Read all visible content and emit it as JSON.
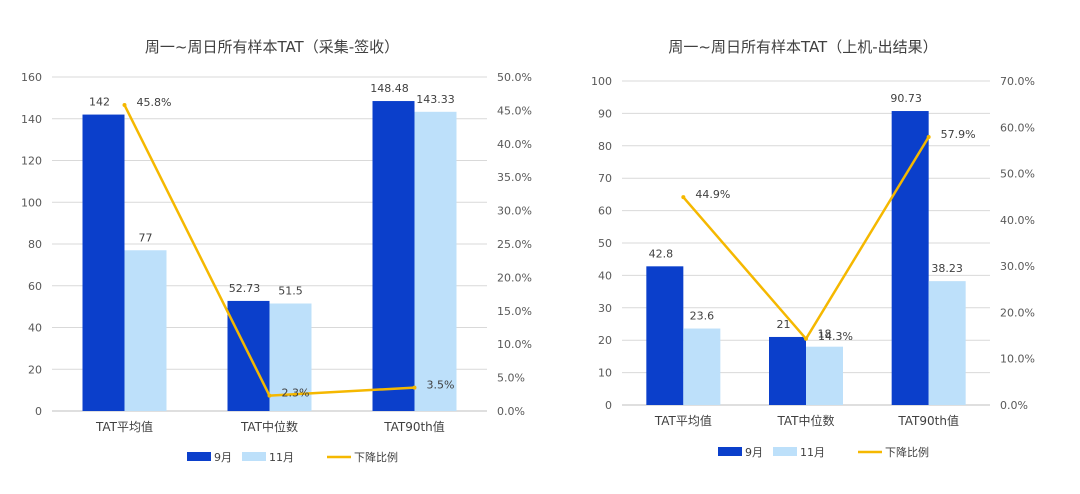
{
  "chart_data": [
    {
      "type": "bar+line",
      "title": "周一~周日所有样本TAT（采集-签收）",
      "categories": [
        "TAT平均值",
        "TAT中位数",
        "TAT90th值"
      ],
      "series": [
        {
          "name": "9月",
          "kind": "bar",
          "color": "#0b3fcb",
          "values": [
            142,
            52.73,
            148.48
          ],
          "labels": [
            "142",
            "52.73",
            "148.48"
          ]
        },
        {
          "name": "11月",
          "kind": "bar",
          "color": "#bde0fa",
          "values": [
            77,
            51.5,
            143.33
          ],
          "labels": [
            "77",
            "51.5",
            "143.33"
          ]
        },
        {
          "name": "下降比例",
          "kind": "line",
          "axis": "right",
          "color": "#f5b800",
          "values": [
            45.8,
            2.3,
            3.5
          ],
          "labels": [
            "45.8%",
            "2.3%",
            "3.5%"
          ]
        }
      ],
      "ylim": [
        0,
        160
      ],
      "yticks": [
        "0",
        "20",
        "40",
        "60",
        "80",
        "100",
        "120",
        "140",
        "160"
      ],
      "y2lim": [
        0,
        50
      ],
      "y2ticks": [
        "0.0%",
        "5.0%",
        "10.0%",
        "15.0%",
        "20.0%",
        "25.0%",
        "30.0%",
        "35.0%",
        "40.0%",
        "45.0%",
        "50.0%"
      ],
      "grid": true,
      "legend": "bottom"
    },
    {
      "type": "bar+line",
      "title": "周一~周日所有样本TAT（上机-出结果）",
      "categories": [
        "TAT平均值",
        "TAT中位数",
        "TAT90th值"
      ],
      "series": [
        {
          "name": "9月",
          "kind": "bar",
          "color": "#0b3fcb",
          "values": [
            42.8,
            21,
            90.73
          ],
          "labels": [
            "42.8",
            "21",
            "90.73"
          ]
        },
        {
          "name": "11月",
          "kind": "bar",
          "color": "#bde0fa",
          "values": [
            23.6,
            18,
            38.23
          ],
          "labels": [
            "23.6",
            "18",
            "38.23"
          ]
        },
        {
          "name": "下降比例",
          "kind": "line",
          "axis": "right",
          "color": "#f5b800",
          "values": [
            44.9,
            14.3,
            57.9
          ],
          "labels": [
            "44.9%",
            "14.3%",
            "57.9%"
          ]
        }
      ],
      "ylim": [
        0,
        100
      ],
      "yticks": [
        "0",
        "10",
        "20",
        "30",
        "40",
        "50",
        "60",
        "70",
        "80",
        "90",
        "100"
      ],
      "y2lim": [
        0,
        70
      ],
      "y2ticks": [
        "0.0%",
        "10.0%",
        "20.0%",
        "30.0%",
        "40.0%",
        "50.0%",
        "60.0%",
        "70.0%"
      ],
      "grid": true,
      "legend": "bottom"
    }
  ]
}
